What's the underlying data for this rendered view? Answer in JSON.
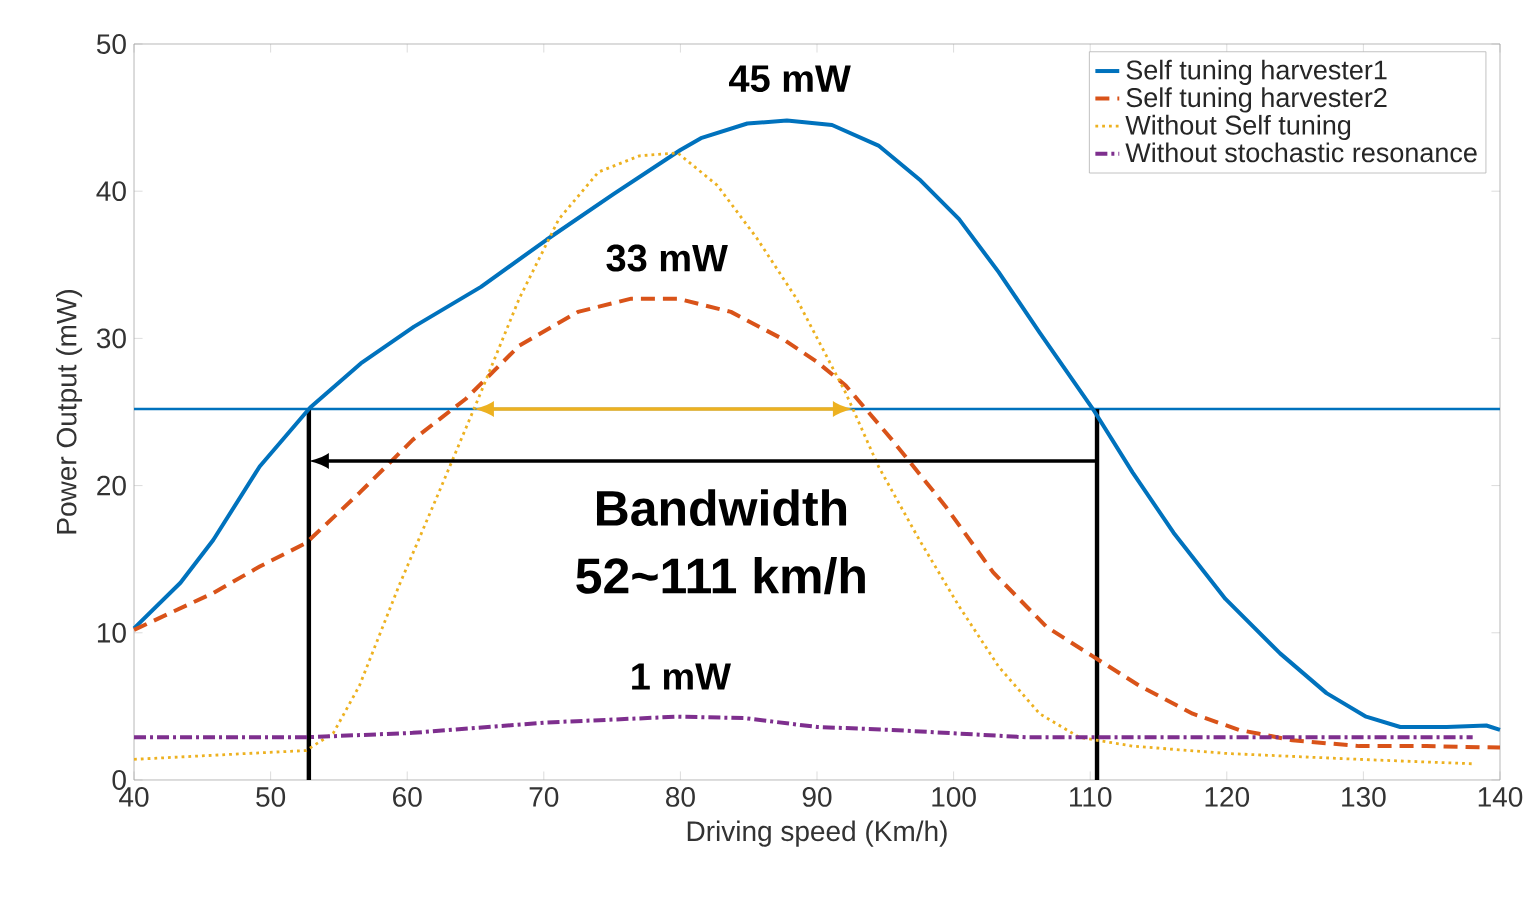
{
  "chart_data": {
    "type": "line",
    "xlabel": "Driving speed (Km/h)",
    "ylabel": "Power Output (mW)",
    "xlim": [
      40,
      140
    ],
    "ylim": [
      0,
      50
    ],
    "xticks": [
      40,
      50,
      60,
      70,
      80,
      90,
      100,
      110,
      120,
      130,
      140
    ],
    "yticks": [
      0,
      10,
      20,
      30,
      40,
      50
    ],
    "grid": false,
    "legend": "top right",
    "marker": "none",
    "series": [
      {
        "name": "Self tuning harvester1",
        "color": "#0072bd",
        "line_style": "solid",
        "x": [
          40,
          43.4,
          45.8,
          49.2,
          52.9,
          56.6,
          60.5,
          65.4,
          70.2,
          75.1,
          80,
          81.5,
          84.9,
          87.8,
          91.1,
          94.5,
          97.5,
          100.4,
          103.3,
          106.3,
          110.2,
          113.1,
          116.1,
          119.9,
          123.9,
          127.3,
          130.2,
          132.7,
          136.1,
          139,
          140
        ],
        "values": [
          10.3,
          13.4,
          16.3,
          21.3,
          25.3,
          28.3,
          30.8,
          33.5,
          36.7,
          39.8,
          42.8,
          43.6,
          44.6,
          44.8,
          44.5,
          43.1,
          40.8,
          38.1,
          34.5,
          30.4,
          25.2,
          20.9,
          16.8,
          12.3,
          8.6,
          5.9,
          4.3,
          3.6,
          3.6,
          3.7,
          3.4
        ]
      },
      {
        "name": "Self tuning harvester2",
        "color": "#d95319",
        "line_style": "dashed",
        "x": [
          40,
          45.8,
          49.2,
          52.6,
          56.5,
          60.4,
          64.3,
          68.2,
          72.5,
          76.4,
          79.8,
          83.7,
          87.6,
          90,
          92.1,
          95.5,
          99.4,
          102.9,
          106.8,
          110.2,
          113.6,
          117.5,
          120.9,
          124.8,
          129.7,
          134.6,
          140
        ],
        "values": [
          10.2,
          12.7,
          14.5,
          16.1,
          19.5,
          23.1,
          25.9,
          29.5,
          31.8,
          32.7,
          32.7,
          31.8,
          29.9,
          28.4,
          26.8,
          23.1,
          18.6,
          14.1,
          10.4,
          8.4,
          6.4,
          4.5,
          3.4,
          2.7,
          2.3,
          2.3,
          2.2
        ]
      },
      {
        "name": "Without Self tuning",
        "color": "#edb120",
        "line_style": "dotted",
        "x": [
          40,
          48.3,
          52.6,
          54.6,
          56.5,
          59.4,
          62.3,
          65.2,
          68.2,
          71.1,
          74,
          77,
          79.8,
          82.7,
          85.6,
          88.5,
          92.1,
          94.5,
          97.5,
          100.4,
          103.3,
          106.3,
          109.2,
          113.1,
          120,
          129.7,
          138
        ],
        "values": [
          1.4,
          1.8,
          2.0,
          3.2,
          6.4,
          13.2,
          19.5,
          25.9,
          32.7,
          38.1,
          41.3,
          42.4,
          42.6,
          40.4,
          36.8,
          32.7,
          26.3,
          21.3,
          16.3,
          11.8,
          7.7,
          4.5,
          2.9,
          2.3,
          1.8,
          1.4,
          1.1
        ]
      },
      {
        "name": "Without stochastic resonance",
        "color": "#7e2f8e",
        "line_style": "dashdotted",
        "x": [
          40,
          52.6,
          60.4,
          70.1,
          79.8,
          84.7,
          90,
          95.5,
          105.3,
          115.1,
          124.8,
          138
        ],
        "values": [
          2.9,
          2.9,
          3.2,
          3.9,
          4.3,
          4.2,
          3.6,
          3.4,
          2.9,
          2.9,
          2.9,
          2.9
        ]
      }
    ],
    "ref_lines": [
      {
        "axis": "y",
        "value": 25.2,
        "color": "#0072bd",
        "line_style": "solid"
      },
      {
        "axis": "x",
        "value": 52.8,
        "color": "#000000",
        "line_style": "solid"
      },
      {
        "axis": "x",
        "value": 110.5,
        "color": "#000000",
        "line_style": "solid"
      }
    ],
    "annotations": [
      {
        "text": "45 mW",
        "x": 88,
        "y": 44.9
      },
      {
        "text": "33 mW",
        "x": 79,
        "y": 32.7
      },
      {
        "text": "1 mW",
        "x": 80,
        "y": 4.3
      },
      "Bandwidth",
      "52~111 km/h"
    ]
  }
}
